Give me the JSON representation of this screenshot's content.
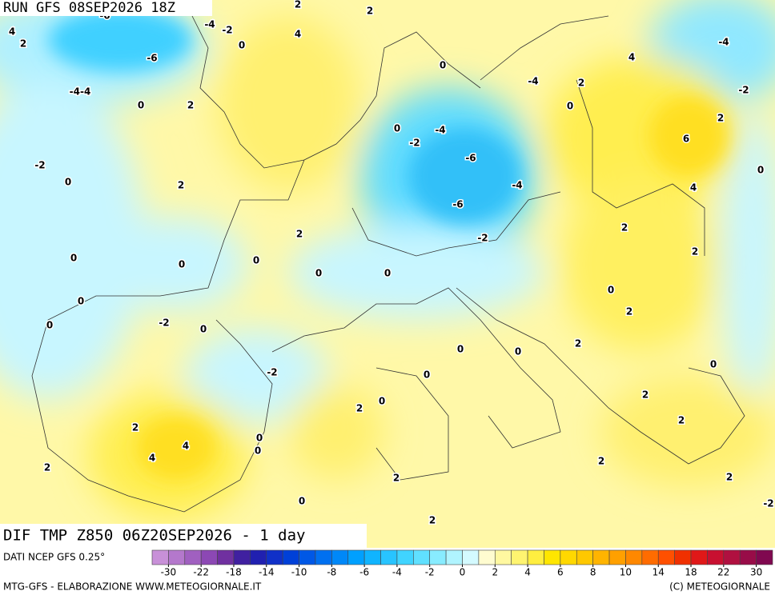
{
  "header": {
    "run": "RUN GFS 08SEP2026 18Z"
  },
  "footer": {
    "field": "DIF TMP Z850 06Z20SEP2026 - 1 day",
    "source": "DATI NCEP GFS 0.25°",
    "credit_left": "MTG-GFS - ELABORAZIONE WWW.METEOGIORNALE.IT",
    "credit_right": "(C) METEOGIORNALE"
  },
  "colorbar": {
    "ticks": [
      -30,
      -22,
      -18,
      -14,
      -10,
      -8,
      -6,
      -4,
      -2,
      0,
      2,
      4,
      6,
      8,
      10,
      14,
      18,
      22,
      30
    ],
    "colors": [
      "#c890d8",
      "#b478cc",
      "#a060c0",
      "#8c48b4",
      "#7030a0",
      "#4020a0",
      "#2020b0",
      "#1030c8",
      "#0040d8",
      "#0058e6",
      "#0070f0",
      "#0088f8",
      "#00a0ff",
      "#10b4ff",
      "#28c4ff",
      "#40d4ff",
      "#60e0ff",
      "#88ecff",
      "#b0f4ff",
      "#d4faff",
      "#fffcd0",
      "#fff8a0",
      "#fff470",
      "#ffee40",
      "#ffe600",
      "#ffd800",
      "#ffc800",
      "#ffb400",
      "#ffa000",
      "#ff8800",
      "#ff6c00",
      "#ff5000",
      "#f03000",
      "#e01818",
      "#c81030",
      "#b01040",
      "#980c48",
      "#800850"
    ]
  },
  "contour_labels": [
    "-6",
    "4",
    "2",
    "-4",
    "-2",
    "2",
    "2",
    "4",
    "0",
    "-6",
    "-4-4",
    "0",
    "2",
    "0",
    "4",
    "-4",
    "-4",
    "2",
    "0",
    "-2",
    "2",
    "0",
    "-4",
    "-2",
    "6",
    "-2",
    "0",
    "2",
    "-6",
    "0",
    "-4",
    "4",
    "-6",
    "2",
    "2",
    "-2",
    "0",
    "0",
    "0",
    "2",
    "0",
    "0",
    "0",
    "0",
    "2",
    "0",
    "-2",
    "0",
    "2",
    "0",
    "0",
    "0",
    "-2",
    "0",
    "2",
    "0",
    "2",
    "2",
    "2",
    "4",
    "0",
    "0",
    "4",
    "2",
    "2",
    "2",
    "2",
    "0",
    "2",
    "-2"
  ]
}
